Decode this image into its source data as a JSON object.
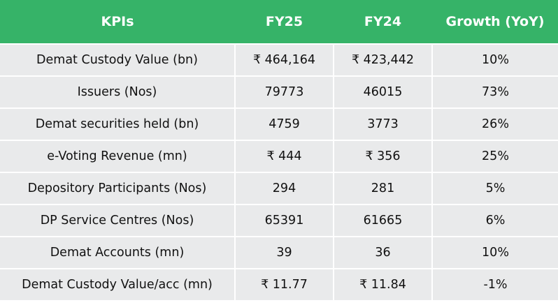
{
  "headers": [
    "KPIs",
    "FY25",
    "FY24",
    "Growth (YoY)"
  ],
  "rows": [
    [
      "Demat Custody Value (bn)",
      "₹ 464,164",
      "₹ 423,442",
      "10%"
    ],
    [
      "Issuers (Nos)",
      "79773",
      "46015",
      "73%"
    ],
    [
      "Demat securities held (bn)",
      "4759",
      "3773",
      "26%"
    ],
    [
      "e-Voting Revenue (mn)",
      "₹ 444",
      "₹ 356",
      "25%"
    ],
    [
      "Depository Participants (Nos)",
      "294",
      "281",
      "5%"
    ],
    [
      "DP Service Centres (Nos)",
      "65391",
      "61665",
      "6%"
    ],
    [
      "Demat Accounts (mn)",
      "39",
      "36",
      "10%"
    ],
    [
      "Demat Custody Value/acc (mn)",
      "₹ 11.77",
      "₹ 11.84",
      "-1%"
    ]
  ],
  "colors": {
    "header_bg": "#36b368",
    "row_bg": "#e9eaeb"
  }
}
